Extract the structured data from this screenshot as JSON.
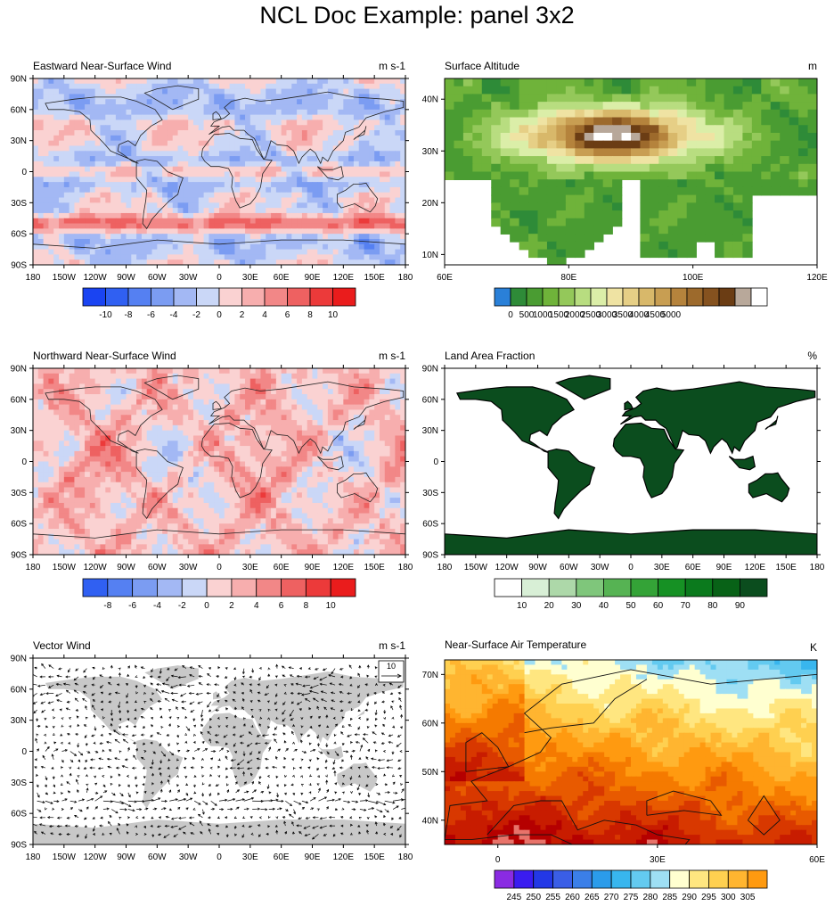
{
  "title": "NCL Doc Example: panel 3x2",
  "colors": {
    "blue_red": [
      "#1a44f2",
      "#3060f2",
      "#5580f2",
      "#7b9cf2",
      "#a3b8f4",
      "#cad7f7",
      "#fad2d2",
      "#f7aeae",
      "#f28787",
      "#ee6161",
      "#ec3a3a",
      "#ea1c1c"
    ],
    "terrain": [
      "#2a80d8",
      "#2e8b38",
      "#4a9c32",
      "#6fb33a",
      "#94c85a",
      "#b8dd80",
      "#dbeea8",
      "#efe3a3",
      "#e6cf86",
      "#d8b86a",
      "#c89e52",
      "#b5833c",
      "#9d6a2c",
      "#85521f",
      "#6b3d14",
      "#b8a89a",
      "#ffffff"
    ],
    "greens": [
      "#ffffff",
      "#d8efd6",
      "#add8a9",
      "#7fc67b",
      "#56b353",
      "#34a337",
      "#169124",
      "#0b7a1d",
      "#086217",
      "#0b4d1e"
    ],
    "temp": [
      "#8a2be2",
      "#3a1cf0",
      "#2338e6",
      "#3a5ee6",
      "#3b7fe8",
      "#2b9cea",
      "#38b6ee",
      "#63caf0",
      "#9edff4",
      "#ffffd0",
      "#ffe680",
      "#ffd050",
      "#ffb530",
      "#ff9a10",
      "#f57a00",
      "#e85a00",
      "#d83800",
      "#c81c00",
      "#b50000",
      "#e8736a",
      "#f5b5b0"
    ],
    "land_gray": "#c8c8c8",
    "land_green": "#0b4d1e"
  },
  "panels": [
    {
      "title": "Eastward Near-Surface Wind",
      "units": "m s-1",
      "chart_data": {
        "type": "heatmap",
        "projection": "global cylindrical equidistant",
        "x_ticks": [
          "180",
          "150W",
          "120W",
          "90W",
          "60W",
          "30W",
          "0",
          "30E",
          "60E",
          "90E",
          "120E",
          "150E",
          "180"
        ],
        "y_ticks": [
          "90N",
          "60N",
          "30N",
          "0",
          "30S",
          "60S",
          "90S"
        ],
        "colorbar_labels": [
          "-10",
          "-8",
          "-6",
          "-4",
          "-2",
          "0",
          "2",
          "4",
          "6",
          "8",
          "10"
        ],
        "zonal_pattern": [
          {
            "lat": "90N",
            "value": -2
          },
          {
            "lat": "60N",
            "value": 2
          },
          {
            "lat": "30N",
            "value": 4
          },
          {
            "lat": "15N",
            "value": -6
          },
          {
            "lat": "0",
            "value": -4
          },
          {
            "lat": "15S",
            "value": -6
          },
          {
            "lat": "30S",
            "value": 2
          },
          {
            "lat": "50S",
            "value": 8
          },
          {
            "lat": "70S",
            "value": -2
          },
          {
            "lat": "90S",
            "value": 0
          }
        ]
      }
    },
    {
      "title": "Surface Altitude",
      "units": "m",
      "chart_data": {
        "type": "heatmap",
        "projection": "regional cylindrical equidistant",
        "x_ticks": [
          "60E",
          "80E",
          "100E",
          "120E"
        ],
        "y_ticks": [
          "40N",
          "30N",
          "20N",
          "10N"
        ],
        "xlim": [
          60,
          120
        ],
        "ylim": [
          8,
          44
        ],
        "colorbar_labels": [
          "0",
          "500",
          "1000",
          "1500",
          "2000",
          "2500",
          "3000",
          "3500",
          "4000",
          "4500",
          "5000"
        ]
      }
    },
    {
      "title": "Northward Near-Surface Wind",
      "units": "m s-1",
      "chart_data": {
        "type": "heatmap",
        "projection": "global cylindrical equidistant",
        "x_ticks": [
          "180",
          "150W",
          "120W",
          "90W",
          "60W",
          "30W",
          "0",
          "30E",
          "60E",
          "90E",
          "120E",
          "150E",
          "180"
        ],
        "y_ticks": [
          "90N",
          "60N",
          "30N",
          "0",
          "30S",
          "60S",
          "90S"
        ],
        "colorbar_labels": [
          "-8",
          "-6",
          "-4",
          "-2",
          "0",
          "2",
          "4",
          "6",
          "8",
          "10"
        ]
      }
    },
    {
      "title": "Land Area Fraction",
      "units": "%",
      "chart_data": {
        "type": "heatmap",
        "projection": "global cylindrical equidistant",
        "x_ticks": [
          "180",
          "150W",
          "120W",
          "90W",
          "60W",
          "30W",
          "0",
          "30E",
          "60E",
          "90E",
          "120E",
          "150E",
          "180"
        ],
        "y_ticks": [
          "90N",
          "60N",
          "30N",
          "0",
          "30S",
          "60S",
          "90S"
        ],
        "colorbar_labels": [
          "10",
          "20",
          "30",
          "40",
          "50",
          "60",
          "70",
          "80",
          "90"
        ]
      }
    },
    {
      "title": "Vector Wind",
      "units": "m s-1",
      "reference_vector": "10",
      "chart_data": {
        "type": "vector",
        "projection": "global cylindrical equidistant",
        "x_ticks": [
          "180",
          "150W",
          "120W",
          "90W",
          "60W",
          "30W",
          "0",
          "30E",
          "60E",
          "90E",
          "120E",
          "150E",
          "180"
        ],
        "y_ticks": [
          "90N",
          "60N",
          "30N",
          "0",
          "30S",
          "60S",
          "90S"
        ]
      }
    },
    {
      "title": "Near-Surface Air Temperature",
      "units": "K",
      "chart_data": {
        "type": "heatmap",
        "projection": "regional cylindrical equidistant",
        "x_ticks": [
          "0",
          "30E",
          "60E"
        ],
        "y_ticks": [
          "70N",
          "60N",
          "50N",
          "40N"
        ],
        "xlim": [
          -10,
          60
        ],
        "ylim": [
          35,
          73
        ],
        "colorbar_labels": [
          "245",
          "250",
          "255",
          "260",
          "265",
          "270",
          "275",
          "280",
          "285",
          "290",
          "295",
          "300",
          "305"
        ]
      }
    }
  ]
}
